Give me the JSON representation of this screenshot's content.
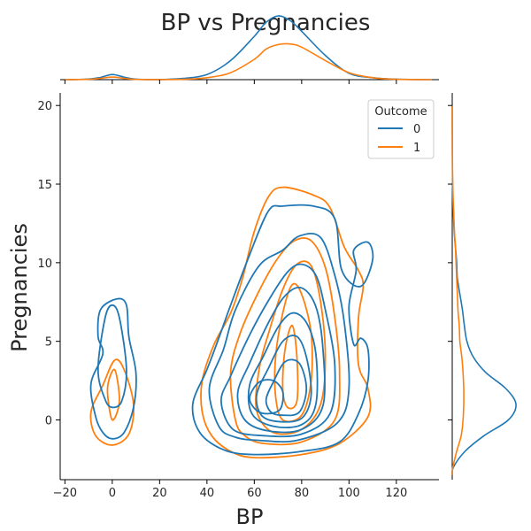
{
  "chart_data": {
    "type": "kde-joint",
    "title": "BP vs Pregnancies",
    "xlabel": "BP",
    "ylabel": "Pregnancies",
    "xlim": [
      -22,
      138
    ],
    "ylim": [
      -3.8,
      20.8
    ],
    "x_ticks": [
      -20,
      0,
      20,
      40,
      60,
      80,
      100,
      120
    ],
    "y_ticks": [
      0,
      5,
      10,
      15,
      20
    ],
    "grid": false,
    "legend": {
      "title": "Outcome",
      "placement": "top-right"
    },
    "series": [
      {
        "name": "0",
        "color": "#1f77b4",
        "x_marginal": [
          [
            -20,
            0.0
          ],
          [
            -15,
            0.003
          ],
          [
            -10,
            0.01
          ],
          [
            -5,
            0.035
          ],
          [
            0,
            0.08
          ],
          [
            5,
            0.04
          ],
          [
            10,
            0.008
          ],
          [
            20,
            0.002
          ],
          [
            30,
            0.02
          ],
          [
            40,
            0.08
          ],
          [
            50,
            0.3
          ],
          [
            60,
            0.68
          ],
          [
            65,
            0.9
          ],
          [
            70,
            1.0
          ],
          [
            75,
            0.93
          ],
          [
            80,
            0.76
          ],
          [
            90,
            0.38
          ],
          [
            100,
            0.1
          ],
          [
            110,
            0.03
          ],
          [
            120,
            0.008
          ],
          [
            135,
            0.0
          ]
        ],
        "y_marginal": [
          [
            -3.5,
            0.0
          ],
          [
            -3,
            0.02
          ],
          [
            -2,
            0.2
          ],
          [
            -1,
            0.5
          ],
          [
            0,
            0.88
          ],
          [
            1,
            1.0
          ],
          [
            2,
            0.84
          ],
          [
            3,
            0.53
          ],
          [
            4,
            0.33
          ],
          [
            5,
            0.23
          ],
          [
            6,
            0.19
          ],
          [
            7,
            0.16
          ],
          [
            8,
            0.12
          ],
          [
            9,
            0.08
          ],
          [
            10,
            0.07
          ],
          [
            11,
            0.05
          ],
          [
            12,
            0.03
          ],
          [
            13,
            0.02
          ],
          [
            14,
            0.01
          ],
          [
            15,
            0.006
          ],
          [
            16,
            0.003
          ],
          [
            18,
            0.001
          ],
          [
            20,
            0.0
          ]
        ],
        "contours": [
          [
            [
              0,
              -1.2
            ],
            [
              5,
              -0.8
            ],
            [
              9,
              0.8
            ],
            [
              10,
              3.0
            ],
            [
              7,
              5.3
            ],
            [
              6,
              7.3
            ],
            [
              2,
              7.7
            ],
            [
              -5,
              7.0
            ],
            [
              -6,
              5.3
            ],
            [
              -4,
              4.2
            ],
            [
              -9,
              2.3
            ],
            [
              -7,
              0.2
            ],
            [
              -4,
              -0.8
            ]
          ],
          [
            [
              0,
              0.8
            ],
            [
              4,
              1.2
            ],
            [
              6,
              3.2
            ],
            [
              3,
              6.5
            ],
            [
              0,
              7.3
            ],
            [
              -3,
              6.5
            ],
            [
              -6,
              3.2
            ],
            [
              -3,
              1.3
            ]
          ],
          [
            [
              60,
              -2.2
            ],
            [
              80,
              -2.0
            ],
            [
              96,
              -1.4
            ],
            [
              104,
              0.4
            ],
            [
              108,
              2.5
            ],
            [
              108,
              4.5
            ],
            [
              105,
              5.2
            ],
            [
              102,
              4.8
            ],
            [
              100,
              7.2
            ],
            [
              103,
              9.5
            ],
            [
              102,
              10.8
            ],
            [
              108,
              11.3
            ],
            [
              110,
              10.2
            ],
            [
              105,
              8.5
            ],
            [
              97,
              9.5
            ],
            [
              94,
              12.8
            ],
            [
              85,
              13.6
            ],
            [
              72,
              13.6
            ],
            [
              66,
              13.3
            ],
            [
              58,
              10.5
            ],
            [
              50,
              7.3
            ],
            [
              45,
              5.2
            ],
            [
              40,
              3.2
            ],
            [
              34,
              1.0
            ],
            [
              37,
              -0.8
            ],
            [
              47,
              -1.9
            ]
          ],
          [
            [
              62,
              -1.3
            ],
            [
              78,
              -1.3
            ],
            [
              95,
              -0.2
            ],
            [
              100,
              2.0
            ],
            [
              98,
              6.2
            ],
            [
              94,
              9.2
            ],
            [
              88,
              11.6
            ],
            [
              79,
              11.7
            ],
            [
              72,
              10.8
            ],
            [
              62,
              9.8
            ],
            [
              52,
              7.0
            ],
            [
              47,
              4.5
            ],
            [
              41,
              2.0
            ],
            [
              45,
              -0.4
            ],
            [
              52,
              -1.1
            ]
          ],
          [
            [
              64,
              -1.0
            ],
            [
              80,
              -0.9
            ],
            [
              92,
              0.4
            ],
            [
              94,
              3.5
            ],
            [
              90,
              7.0
            ],
            [
              86,
              9.2
            ],
            [
              80,
              9.9
            ],
            [
              74,
              9.4
            ],
            [
              66,
              7.6
            ],
            [
              58,
              5.4
            ],
            [
              50,
              2.8
            ],
            [
              46,
              1.2
            ],
            [
              51,
              -0.6
            ]
          ],
          [
            [
              66,
              -0.7
            ],
            [
              80,
              -0.6
            ],
            [
              89,
              0.9
            ],
            [
              89,
              4.5
            ],
            [
              86,
              7.2
            ],
            [
              80,
              8.4
            ],
            [
              73,
              7.9
            ],
            [
              66,
              6.2
            ],
            [
              58,
              3.6
            ],
            [
              53,
              1.7
            ],
            [
              56,
              0.0
            ]
          ],
          [
            [
              68,
              -0.4
            ],
            [
              80,
              -0.3
            ],
            [
              86,
              1.0
            ],
            [
              86,
              4.2
            ],
            [
              82,
              6.2
            ],
            [
              76,
              6.8
            ],
            [
              70,
              5.9
            ],
            [
              64,
              4.1
            ],
            [
              58,
              2.2
            ],
            [
              59,
              0.4
            ]
          ],
          [
            [
              70,
              -0.1
            ],
            [
              80,
              0.1
            ],
            [
              84,
              1.6
            ],
            [
              82,
              4.0
            ],
            [
              78,
              5.3
            ],
            [
              72,
              5.0
            ],
            [
              66,
              3.3
            ],
            [
              61,
              1.6
            ],
            [
              63,
              0.3
            ]
          ],
          [
            [
              72,
              0.3
            ],
            [
              79,
              0.5
            ],
            [
              82,
              2.0
            ],
            [
              79,
              3.6
            ],
            [
              73,
              3.7
            ],
            [
              68,
              2.4
            ],
            [
              65,
              1.3
            ],
            [
              67,
              0.5
            ]
          ],
          [
            [
              66,
              0.4
            ],
            [
              71,
              0.7
            ],
            [
              72,
              1.8
            ],
            [
              68,
              2.5
            ],
            [
              62,
              2.4
            ],
            [
              58,
              1.4
            ],
            [
              61,
              0.6
            ]
          ]
        ]
      },
      {
        "name": "1",
        "color": "#ff7f0e",
        "x_marginal": [
          [
            -20,
            0.0
          ],
          [
            -10,
            0.005
          ],
          [
            -5,
            0.02
          ],
          [
            0,
            0.04
          ],
          [
            5,
            0.02
          ],
          [
            10,
            0.004
          ],
          [
            20,
            0.001
          ],
          [
            30,
            0.005
          ],
          [
            40,
            0.03
          ],
          [
            50,
            0.11
          ],
          [
            60,
            0.32
          ],
          [
            65,
            0.48
          ],
          [
            70,
            0.55
          ],
          [
            75,
            0.56
          ],
          [
            80,
            0.51
          ],
          [
            90,
            0.3
          ],
          [
            100,
            0.11
          ],
          [
            110,
            0.03
          ],
          [
            120,
            0.005
          ],
          [
            135,
            0.0
          ]
        ],
        "y_marginal": [
          [
            -3.5,
            0.0
          ],
          [
            -3,
            0.01
          ],
          [
            -2,
            0.07
          ],
          [
            -1,
            0.14
          ],
          [
            0,
            0.17
          ],
          [
            1,
            0.18
          ],
          [
            2,
            0.18
          ],
          [
            3,
            0.17
          ],
          [
            4,
            0.15
          ],
          [
            5,
            0.12
          ],
          [
            6,
            0.11
          ],
          [
            7,
            0.09
          ],
          [
            8,
            0.08
          ],
          [
            9,
            0.07
          ],
          [
            10,
            0.06
          ],
          [
            11,
            0.05
          ],
          [
            12,
            0.035
          ],
          [
            13,
            0.025
          ],
          [
            14,
            0.015
          ],
          [
            15,
            0.008
          ],
          [
            16,
            0.004
          ],
          [
            18,
            0.001
          ],
          [
            20,
            0.0
          ]
        ],
        "contours": [
          [
            [
              0,
              -1.6
            ],
            [
              7,
              -0.9
            ],
            [
              9,
              1.0
            ],
            [
              5,
              3.2
            ],
            [
              1,
              3.8
            ],
            [
              -4,
              2.2
            ],
            [
              -9,
              0.5
            ],
            [
              -7,
              -1.0
            ]
          ],
          [
            [
              0,
              0.0
            ],
            [
              3,
              1.2
            ],
            [
              1,
              3.2
            ],
            [
              -2,
              2.0
            ]
          ],
          [
            [
              60,
              -2.4
            ],
            [
              80,
              -2.2
            ],
            [
              96,
              -1.5
            ],
            [
              108,
              0.2
            ],
            [
              108,
              2.0
            ],
            [
              104,
              3.5
            ],
            [
              104,
              6.5
            ],
            [
              106,
              8.5
            ],
            [
              104,
              9.5
            ],
            [
              98,
              11.0
            ],
            [
              92,
              13.5
            ],
            [
              85,
              14.3
            ],
            [
              72,
              14.8
            ],
            [
              66,
              14.2
            ],
            [
              60,
              12.0
            ],
            [
              55,
              9.0
            ],
            [
              50,
              6.8
            ],
            [
              43,
              4.8
            ],
            [
              38,
              2.5
            ],
            [
              38,
              0.5
            ],
            [
              42,
              -1.0
            ],
            [
              50,
              -2.0
            ]
          ],
          [
            [
              64,
              -1.5
            ],
            [
              80,
              -1.4
            ],
            [
              94,
              0.0
            ],
            [
              96,
              3.0
            ],
            [
              94,
              6.5
            ],
            [
              90,
              9.7
            ],
            [
              84,
              11.4
            ],
            [
              77,
              11.4
            ],
            [
              70,
              10.3
            ],
            [
              62,
              8.2
            ],
            [
              54,
              5.5
            ],
            [
              50,
              3.0
            ],
            [
              52,
              0.0
            ],
            [
              56,
              -1.0
            ]
          ],
          [
            [
              68,
              -0.8
            ],
            [
              80,
              -0.6
            ],
            [
              88,
              1.0
            ],
            [
              90,
              4.0
            ],
            [
              88,
              7.5
            ],
            [
              84,
              9.8
            ],
            [
              78,
              9.9
            ],
            [
              72,
              8.3
            ],
            [
              66,
              5.5
            ],
            [
              62,
              3.2
            ],
            [
              61,
              0.6
            ]
          ],
          [
            [
              72,
              0.0
            ],
            [
              80,
              0.3
            ],
            [
              84,
              2.5
            ],
            [
              84,
              5.5
            ],
            [
              80,
              8.0
            ],
            [
              76,
              8.6
            ],
            [
              72,
              6.8
            ],
            [
              69,
              4.0
            ],
            [
              69,
              1.5
            ]
          ],
          [
            [
              74,
              0.8
            ],
            [
              78,
              1.2
            ],
            [
              78,
              4.0
            ],
            [
              76,
              6.0
            ],
            [
              73,
              4.5
            ],
            [
              72,
              2.0
            ]
          ]
        ]
      }
    ]
  }
}
